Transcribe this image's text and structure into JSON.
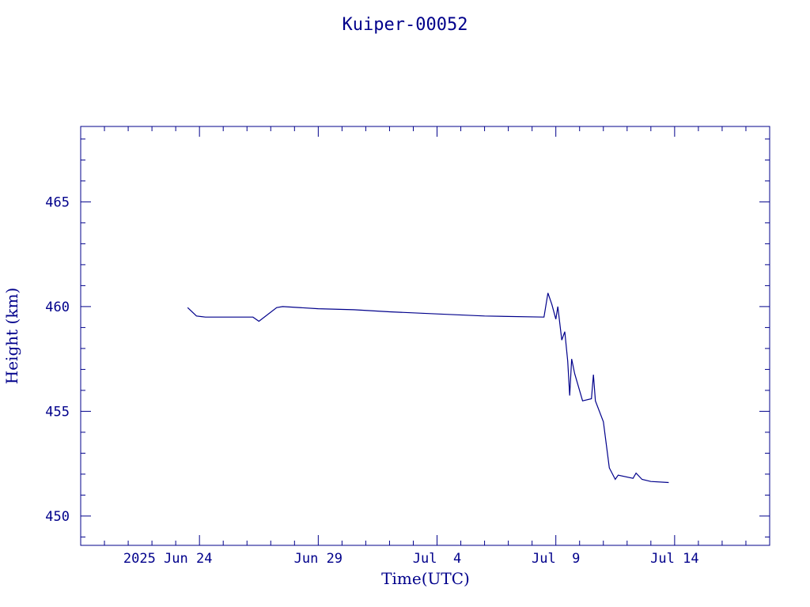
{
  "chart_data": {
    "type": "line",
    "title": "Kuiper-00052",
    "xlabel": "Time(UTC)",
    "ylabel": "Height (km)",
    "x_tick_labels": [
      "2025 Jun 24",
      "Jun 29",
      "Jul  4",
      "Jul  9",
      "Jul 14"
    ],
    "x_tick_dates": [
      "2025-06-24",
      "2025-06-29",
      "2025-07-04",
      "2025-07-09",
      "2025-07-14"
    ],
    "xlim": [
      "2025-06-19",
      "2025-07-18"
    ],
    "ylim": [
      448.6,
      468.6
    ],
    "y_ticks": [
      450,
      455,
      460,
      465
    ],
    "grid": false,
    "color": "#00008b",
    "series": [
      {
        "points": [
          [
            "2025-06-23T12:00",
            459.95
          ],
          [
            "2025-06-23T21:00",
            459.55
          ],
          [
            "2025-06-24T06:00",
            459.5
          ],
          [
            "2025-06-26T06:00",
            459.5
          ],
          [
            "2025-06-26T12:00",
            459.3
          ],
          [
            "2025-06-27T06:00",
            459.95
          ],
          [
            "2025-06-27T12:00",
            460.0
          ],
          [
            "2025-06-29T00:00",
            459.9
          ],
          [
            "2025-06-30T12:00",
            459.85
          ],
          [
            "2025-07-02T00:00",
            459.75
          ],
          [
            "2025-07-04T00:00",
            459.65
          ],
          [
            "2025-07-06T00:00",
            459.55
          ],
          [
            "2025-07-08T12:00",
            459.5
          ],
          [
            "2025-07-08T16:00",
            460.65
          ],
          [
            "2025-07-08T20:00",
            460.1
          ],
          [
            "2025-07-09T00:00",
            459.4
          ],
          [
            "2025-07-09T02:00",
            460.0
          ],
          [
            "2025-07-09T06:00",
            458.4
          ],
          [
            "2025-07-09T09:00",
            458.8
          ],
          [
            "2025-07-09T12:00",
            457.4
          ],
          [
            "2025-07-09T14:00",
            455.75
          ],
          [
            "2025-07-09T16:00",
            457.5
          ],
          [
            "2025-07-09T19:00",
            456.8
          ],
          [
            "2025-07-10T03:00",
            455.5
          ],
          [
            "2025-07-10T12:00",
            455.6
          ],
          [
            "2025-07-10T14:00",
            456.75
          ],
          [
            "2025-07-10T16:00",
            455.5
          ],
          [
            "2025-07-11T00:00",
            454.5
          ],
          [
            "2025-07-11T06:00",
            452.3
          ],
          [
            "2025-07-11T12:00",
            451.75
          ],
          [
            "2025-07-11T15:00",
            451.95
          ],
          [
            "2025-07-12T06:00",
            451.8
          ],
          [
            "2025-07-12T09:00",
            452.05
          ],
          [
            "2025-07-12T15:00",
            451.75
          ],
          [
            "2025-07-13T00:00",
            451.65
          ],
          [
            "2025-07-13T18:00",
            451.6
          ]
        ]
      }
    ]
  }
}
